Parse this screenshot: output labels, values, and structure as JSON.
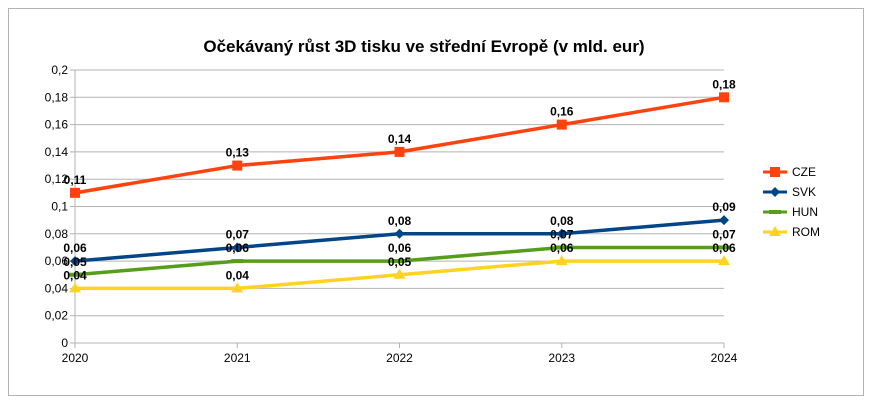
{
  "chart_data": {
    "type": "line",
    "title": "Očekávaný růst 3D tisku ve střední Evropě (v mld. eur)",
    "xlabel": "",
    "ylabel": "",
    "categories": [
      "2020",
      "2021",
      "2022",
      "2023",
      "2024"
    ],
    "y_ticks": [
      "0",
      "0,02",
      "0,04",
      "0,06",
      "0,08",
      "0,1",
      "0,12",
      "0,14",
      "0,16",
      "0,18",
      "0,2"
    ],
    "ylim": [
      0,
      0.2
    ],
    "grid": "horizontal",
    "legend_position": "right",
    "series": [
      {
        "name": "CZE",
        "values": [
          0.11,
          0.13,
          0.14,
          0.16,
          0.18
        ],
        "labels": [
          "0,11",
          "0,13",
          "0,14",
          "0,16",
          "0,18"
        ],
        "color": "#ff420e",
        "marker": "square"
      },
      {
        "name": "SVK",
        "values": [
          0.06,
          0.07,
          0.08,
          0.08,
          0.09
        ],
        "labels": [
          "0,06",
          "0,07",
          "0,08",
          "0,08",
          "0,09"
        ],
        "color": "#004586",
        "marker": "diamond"
      },
      {
        "name": "HUN",
        "values": [
          0.05,
          0.06,
          0.06,
          0.07,
          0.07
        ],
        "labels": [
          "0,05",
          "0,06",
          "0,06",
          "0,07",
          "0,07"
        ],
        "color": "#579d1c",
        "marker": "bar"
      },
      {
        "name": "ROM",
        "values": [
          0.04,
          0.04,
          0.05,
          0.06,
          0.06
        ],
        "labels": [
          "0,04",
          "0,04",
          "0,05",
          "0,06",
          "0,06"
        ],
        "color": "#ffd320",
        "marker": "triangle"
      }
    ]
  }
}
